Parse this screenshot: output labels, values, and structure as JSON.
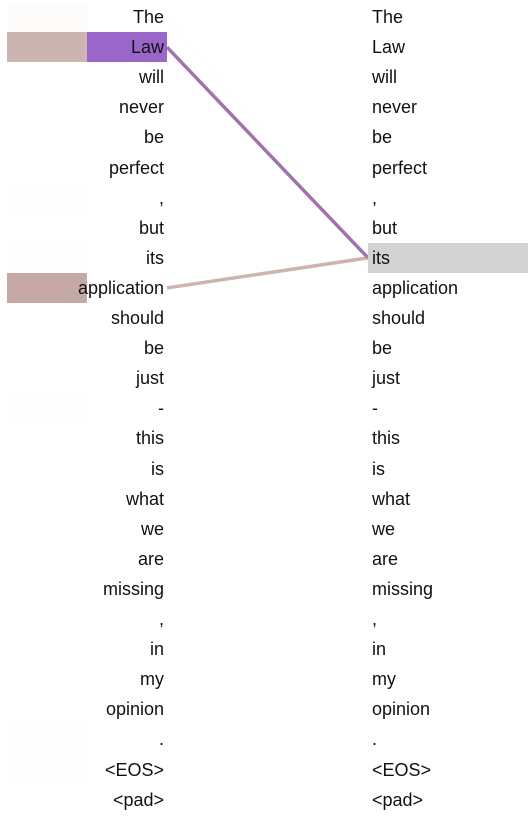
{
  "left_tokens": [
    "The",
    "Law",
    "will",
    "never",
    "be",
    "perfect",
    ",",
    "but",
    "its",
    "application",
    "should",
    "be",
    "just",
    "-",
    "this",
    "is",
    "what",
    "we",
    "are",
    "missing",
    ",",
    "in",
    "my",
    "opinion",
    ".",
    "<EOS>",
    "<pad>"
  ],
  "right_tokens": [
    "The",
    "Law",
    "will",
    "never",
    "be",
    "perfect",
    ",",
    "but",
    "its",
    "application",
    "should",
    "be",
    "just",
    "-",
    "this",
    "is",
    "what",
    "we",
    "are",
    "missing",
    ",",
    "in",
    "my",
    "opinion",
    ".",
    "<EOS>",
    "<pad>"
  ],
  "selected_right_index": 8,
  "heads": [
    {
      "color": "#b7948e",
      "weights": [
        0.03,
        0.7,
        0,
        0,
        0,
        0,
        0.01,
        0,
        0.01,
        0.8,
        0,
        0,
        0,
        0.01,
        0,
        0,
        0,
        0,
        0,
        0,
        0,
        0,
        0,
        0,
        0.01,
        0.02,
        0
      ]
    },
    {
      "color": "#8f55c4",
      "weights": [
        0,
        0.9,
        0,
        0,
        0,
        0,
        0,
        0,
        0,
        0,
        0,
        0,
        0,
        0,
        0,
        0,
        0,
        0,
        0,
        0,
        0,
        0,
        0,
        0,
        0,
        0,
        0
      ]
    }
  ],
  "attention_edges": [
    {
      "from": 0,
      "to": 8,
      "weight": 0.02,
      "color": "#c9a0a0"
    },
    {
      "from": 1,
      "to": 8,
      "weight": 0.85,
      "color": "#8f5a9e"
    },
    {
      "from": 9,
      "to": 8,
      "weight": 0.65,
      "color": "#b48c86"
    }
  ]
}
